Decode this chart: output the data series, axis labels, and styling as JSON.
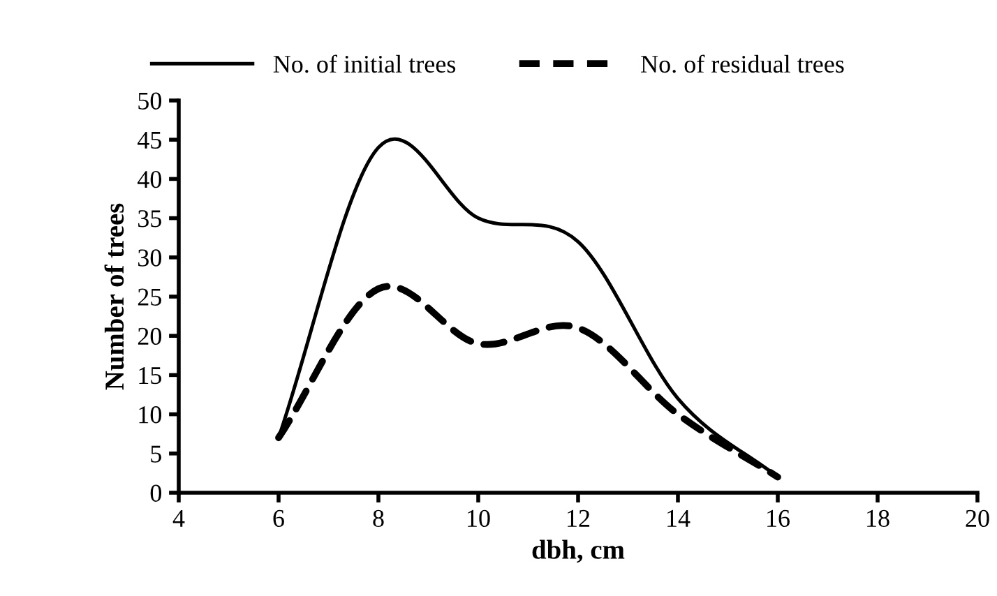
{
  "chart_data": {
    "type": "line",
    "xlabel": "dbh, cm",
    "ylabel": "Number of trees",
    "x": [
      6,
      8,
      10,
      12,
      14,
      16
    ],
    "series": [
      {
        "name": "No. of initial trees",
        "color": "#000000",
        "line_style": "solid",
        "values": [
          7,
          44,
          35,
          32,
          12,
          2
        ]
      },
      {
        "name": "No. of residual trees",
        "color": "#000000",
        "line_style": "dashed",
        "values": [
          7,
          26,
          19,
          21,
          10,
          2
        ]
      }
    ],
    "xlim": [
      4,
      20
    ],
    "xticks": [
      4,
      6,
      8,
      10,
      12,
      14,
      16,
      18,
      20
    ],
    "ylim": [
      0,
      50
    ],
    "yticks": [
      0,
      5,
      10,
      15,
      20,
      25,
      30,
      35,
      40,
      45,
      50
    ],
    "grid": false,
    "legend": "top",
    "marker": "none"
  }
}
